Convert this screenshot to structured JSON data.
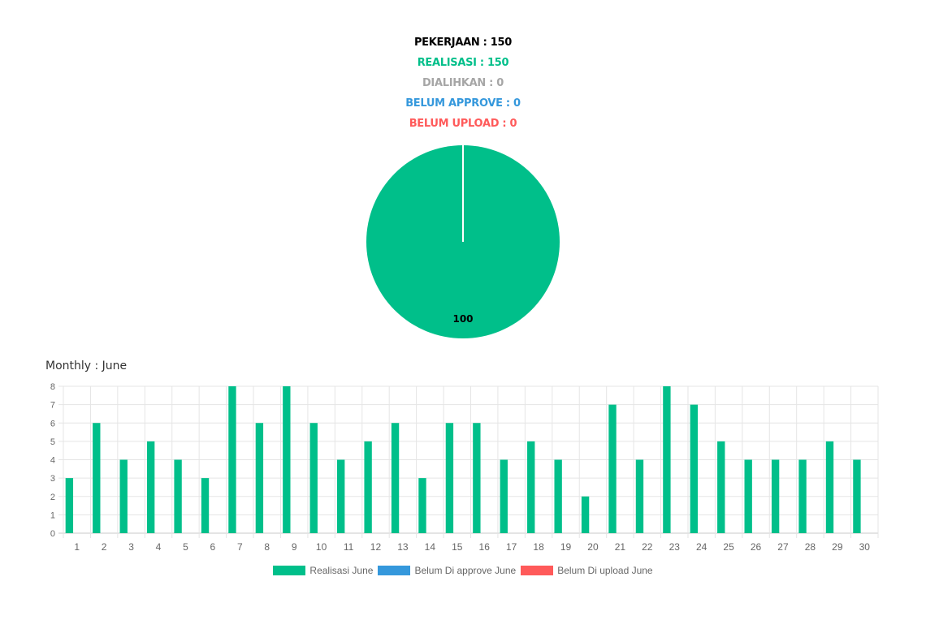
{
  "summary": {
    "pekerjaan": "PEKERJAAN : 150",
    "realisasi": "REALISASI : 150",
    "dialihkan": "DIALIHKAN : 0",
    "belum_approve": "BELUM APPROVE : 0",
    "belum_upload": "BELUM UPLOAD : 0"
  },
  "colors": {
    "realisasi": "#00bf8a",
    "dialihkan": "#a6a6a6",
    "belum_approve": "#3598dc",
    "belum_upload": "#ff5a5a",
    "text_dark": "#000000",
    "grid": "#e5e5e5",
    "tick": "#666666"
  },
  "monthly_title": "Monthly : June",
  "chart_data": [
    {
      "type": "pie",
      "slices": [
        {
          "category": "Realisasi",
          "value": 150,
          "label": "100",
          "color": "#00bf8a"
        },
        {
          "category": "Dialihkan",
          "value": 0,
          "color": "#a6a6a6"
        },
        {
          "category": "Belum Approve",
          "value": 0,
          "color": "#3598dc"
        },
        {
          "category": "Belum Upload",
          "value": 0,
          "color": "#ff5a5a"
        }
      ]
    },
    {
      "type": "bar",
      "title": "Monthly : June",
      "categories": [
        "1",
        "2",
        "3",
        "4",
        "5",
        "6",
        "7",
        "8",
        "9",
        "10",
        "11",
        "12",
        "13",
        "14",
        "15",
        "16",
        "17",
        "18",
        "19",
        "20",
        "21",
        "22",
        "23",
        "24",
        "25",
        "26",
        "27",
        "28",
        "29",
        "30"
      ],
      "series": [
        {
          "name": "Realisasi June",
          "color": "#00bf8a",
          "values": [
            3,
            6,
            4,
            5,
            4,
            3,
            8,
            6,
            8,
            6,
            4,
            5,
            6,
            3,
            6,
            6,
            4,
            5,
            4,
            2,
            7,
            4,
            8,
            7,
            5,
            4,
            4,
            4,
            5,
            4
          ]
        },
        {
          "name": "Belum Di approve June",
          "color": "#3598dc",
          "values": [
            0,
            0,
            0,
            0,
            0,
            0,
            0,
            0,
            0,
            0,
            0,
            0,
            0,
            0,
            0,
            0,
            0,
            0,
            0,
            0,
            0,
            0,
            0,
            0,
            0,
            0,
            0,
            0,
            0,
            0
          ]
        },
        {
          "name": "Belum Di upload June",
          "color": "#ff5a5a",
          "values": [
            0,
            0,
            0,
            0,
            0,
            0,
            0,
            0,
            0,
            0,
            0,
            0,
            0,
            0,
            0,
            0,
            0,
            0,
            0,
            0,
            0,
            0,
            0,
            0,
            0,
            0,
            0,
            0,
            0,
            0
          ]
        }
      ],
      "ylim": [
        0,
        8
      ],
      "yticks": [
        "0",
        "1",
        "2",
        "3",
        "4",
        "5",
        "6",
        "7",
        "8"
      ],
      "grid": true,
      "legend": "bottom"
    }
  ]
}
